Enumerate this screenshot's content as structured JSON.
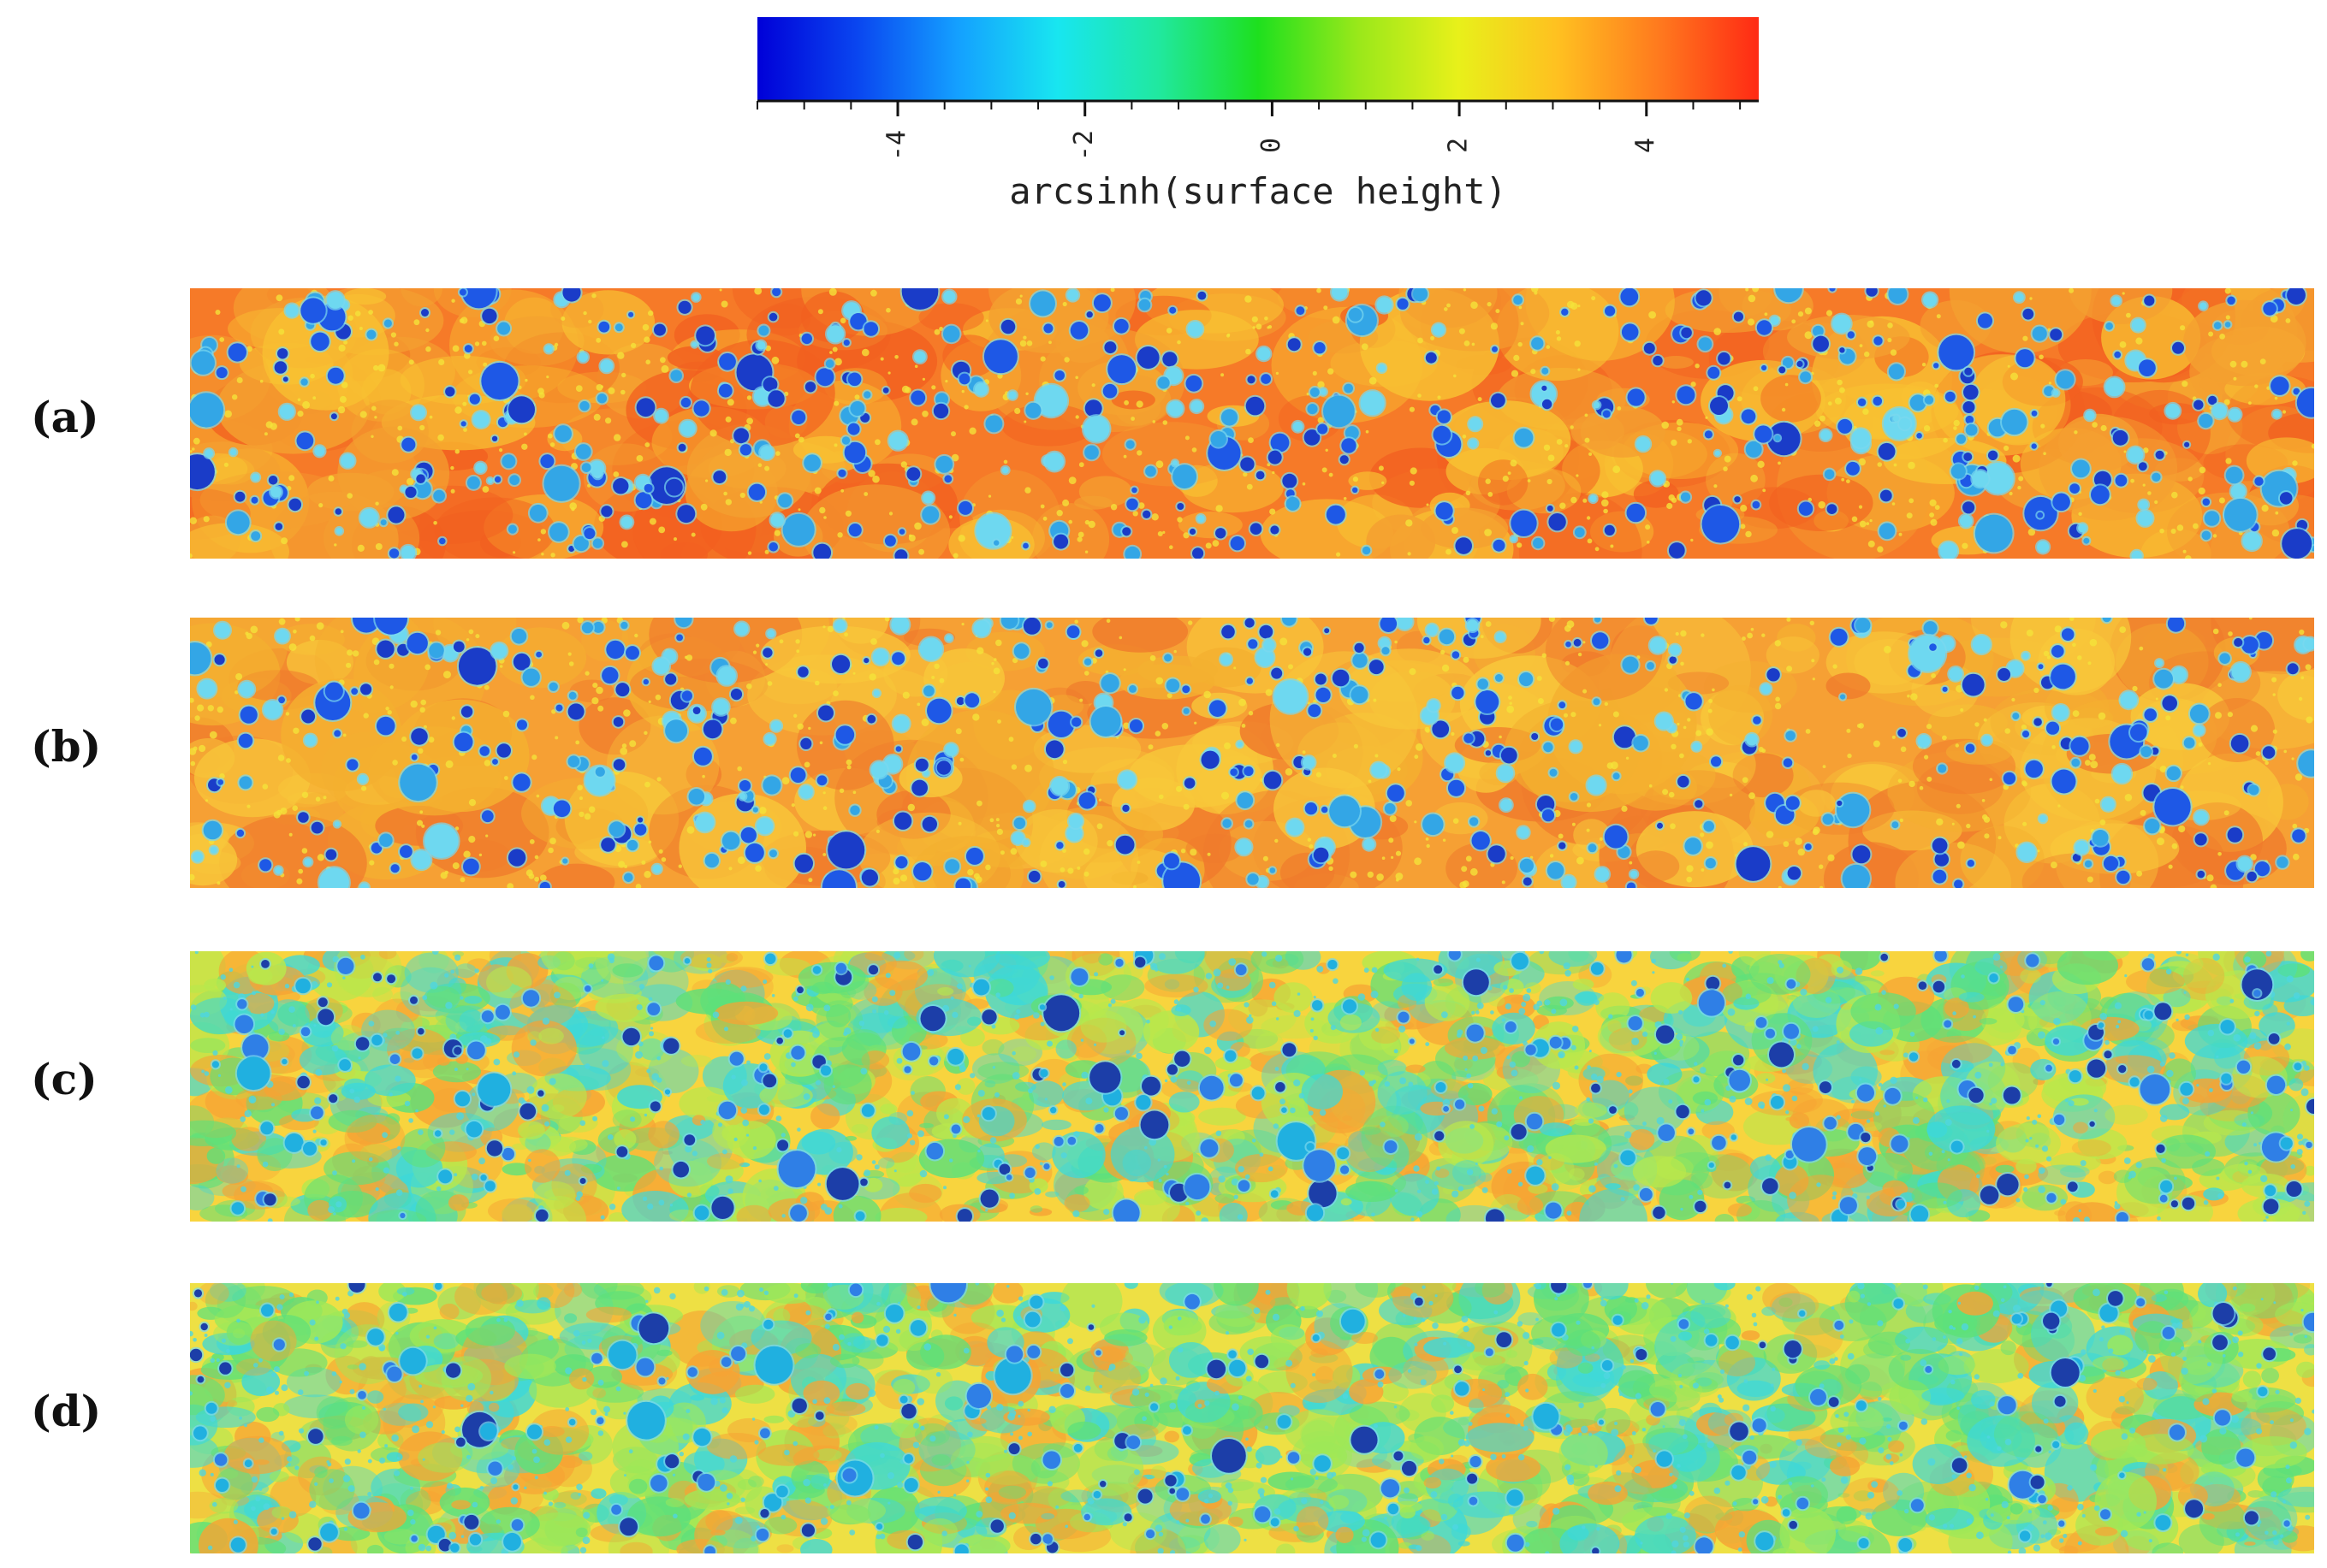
{
  "colorbar": {
    "label": "arcsinh(surface height)",
    "ticks": [
      {
        "value": -4,
        "text": "-4"
      },
      {
        "value": -2,
        "text": "-2"
      },
      {
        "value": 0,
        "text": "0"
      },
      {
        "value": 2,
        "text": "2"
      },
      {
        "value": 4,
        "text": "4"
      }
    ],
    "range": [
      -5.5,
      5.2
    ],
    "colormap": [
      "#0000d8",
      "#0a46f0",
      "#14a0ff",
      "#18e6f0",
      "#20e8a0",
      "#1ee01e",
      "#9ae81a",
      "#e8f01a",
      "#ffc020",
      "#ff7a1e",
      "#ff2a14"
    ]
  },
  "panels": [
    {
      "label": "(a)",
      "base_color": "#f67a28",
      "patch_colors": [
        "#f4a030",
        "#f8c232",
        "#f26020"
      ],
      "feature_colors": [
        "#1e58e6",
        "#33a6e6",
        "#1a3cc8",
        "#6ed8f0"
      ],
      "density": 1.0
    },
    {
      "label": "(b)",
      "base_color": "#f6a034",
      "patch_colors": [
        "#f07b2c",
        "#f8c83a",
        "#f4b030"
      ],
      "feature_colors": [
        "#1e58e6",
        "#33a6e6",
        "#1a3cc8",
        "#6ed8f0"
      ],
      "density": 1.0
    },
    {
      "label": "(c)",
      "base_color": "#f8d43e",
      "patch_colors": [
        "#5ee07a",
        "#3ed8d8",
        "#f6a434",
        "#b8e84c"
      ],
      "feature_colors": [
        "#1c3ea8",
        "#2f7fe6",
        "#20b0e0"
      ],
      "density": 0.55
    },
    {
      "label": "(d)",
      "base_color": "#eee044",
      "patch_colors": [
        "#5ee07a",
        "#3ed8d8",
        "#f6a434",
        "#9ee858"
      ],
      "feature_colors": [
        "#1c3ea8",
        "#2f7fe6",
        "#20b0e0"
      ],
      "density": 0.45
    }
  ]
}
